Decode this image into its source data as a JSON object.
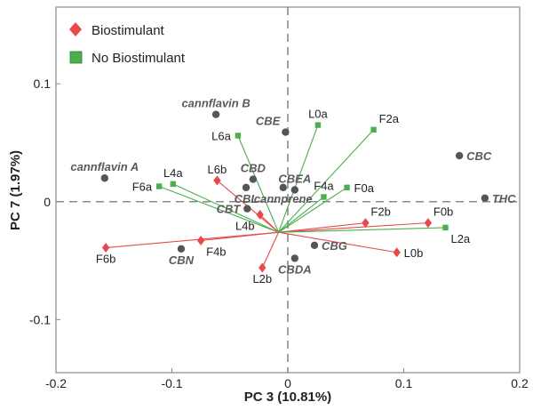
{
  "chart_data": {
    "type": "scatter",
    "title": "",
    "xlabel": "PC 3 (10.81%)",
    "ylabel": "PC 7 (1.97%)",
    "xlim": [
      -0.2,
      0.2
    ],
    "ylim": [
      -0.145,
      0.165
    ],
    "x_ticks": [
      -0.2,
      -0.1,
      0,
      0.1,
      0.2
    ],
    "x_tick_labels": [
      "-0.2",
      "-0.1",
      "0",
      "0.1",
      "0.2"
    ],
    "y_ticks": [
      -0.1,
      0,
      0.1
    ],
    "y_tick_labels": [
      "-0.1",
      "0",
      "0.1"
    ],
    "legend": {
      "position": "top-left",
      "entries": [
        {
          "label": "Biostimulant",
          "color": "#e84a4a",
          "marker": "diamond"
        },
        {
          "label": "No Biostimulant",
          "color": "#4cae4c",
          "marker": "square"
        }
      ]
    },
    "colors": {
      "biostimulant": "#e84a4a",
      "no_biostimulant": "#4cae4c",
      "variable": "#555555"
    },
    "variables": [
      {
        "name": "cannflavin B",
        "x": -0.062,
        "y": 0.074,
        "pos": "above"
      },
      {
        "name": "cannflavin A",
        "x": -0.158,
        "y": 0.02,
        "pos": "above"
      },
      {
        "name": "CBE",
        "x": -0.002,
        "y": 0.059,
        "pos": "above-left"
      },
      {
        "name": "CBD",
        "x": -0.03,
        "y": 0.019,
        "pos": "above"
      },
      {
        "name": "CBEA",
        "x": 0.006,
        "y": 0.01,
        "pos": "above"
      },
      {
        "name": "CBL",
        "x": -0.036,
        "y": 0.012,
        "pos": "below"
      },
      {
        "name": "CBT",
        "x": -0.035,
        "y": -0.006,
        "pos": "left"
      },
      {
        "name": "cannprene",
        "x": -0.004,
        "y": 0.012,
        "pos": "below"
      },
      {
        "name": "CBC",
        "x": 0.148,
        "y": 0.039,
        "pos": "right"
      },
      {
        "name": "THC",
        "x": 0.17,
        "y": 0.003,
        "pos": "right"
      },
      {
        "name": "CBN",
        "x": -0.092,
        "y": -0.04,
        "pos": "below"
      },
      {
        "name": "CBG",
        "x": 0.023,
        "y": -0.037,
        "pos": "right"
      },
      {
        "name": "CBDA",
        "x": 0.006,
        "y": -0.048,
        "pos": "below"
      }
    ],
    "centroid": {
      "x": -0.008,
      "y": -0.026
    },
    "series": [
      {
        "name": "Biostimulant",
        "points": [
          {
            "label": "L6b",
            "x": -0.061,
            "y": 0.018,
            "pos": "above"
          },
          {
            "label": "F6b",
            "x": -0.157,
            "y": -0.039,
            "pos": "below"
          },
          {
            "label": "F4b",
            "x": -0.075,
            "y": -0.033,
            "pos": "below-right"
          },
          {
            "label": "L4b",
            "x": -0.024,
            "y": -0.011,
            "pos": "below-left"
          },
          {
            "label": "L2b",
            "x": -0.022,
            "y": -0.056,
            "pos": "below"
          },
          {
            "label": "F2b",
            "x": 0.067,
            "y": -0.018,
            "pos": "above-right"
          },
          {
            "label": "F0b",
            "x": 0.121,
            "y": -0.018,
            "pos": "above-right"
          },
          {
            "label": "L0b",
            "x": 0.094,
            "y": -0.043,
            "pos": "right"
          }
        ]
      },
      {
        "name": "No Biostimulant",
        "points": [
          {
            "label": "L6a",
            "x": -0.043,
            "y": 0.056,
            "pos": "left"
          },
          {
            "label": "L4a",
            "x": -0.099,
            "y": 0.015,
            "pos": "above"
          },
          {
            "label": "F6a",
            "x": -0.111,
            "y": 0.013,
            "pos": "left"
          },
          {
            "label": "L0a",
            "x": 0.026,
            "y": 0.065,
            "pos": "above"
          },
          {
            "label": "F2a",
            "x": 0.074,
            "y": 0.061,
            "pos": "above-right"
          },
          {
            "label": "F0a",
            "x": 0.051,
            "y": 0.012,
            "pos": "right"
          },
          {
            "label": "F4a",
            "x": 0.031,
            "y": 0.004,
            "pos": "above"
          },
          {
            "label": "L2a",
            "x": 0.136,
            "y": -0.022,
            "pos": "below-right"
          }
        ]
      }
    ]
  }
}
